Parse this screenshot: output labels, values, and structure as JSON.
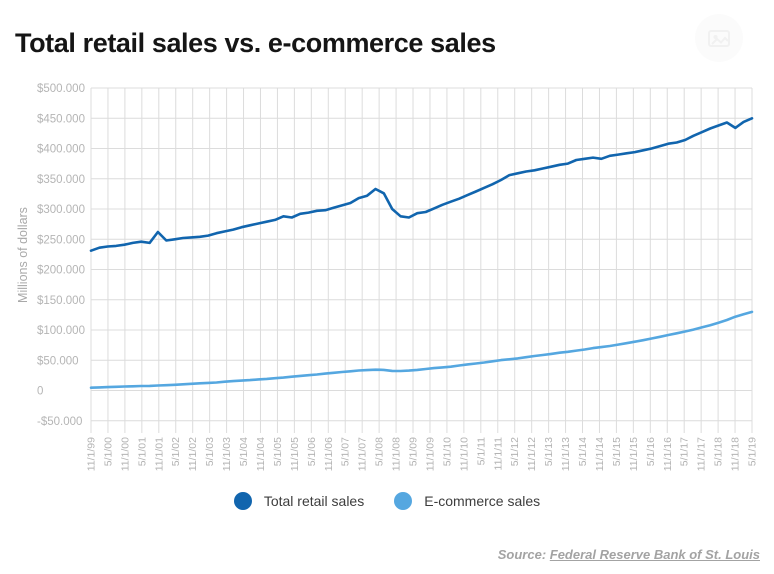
{
  "title": "Total retail sales vs. e-commerce sales",
  "toolbar": {
    "export_icon": "export-chart-icon"
  },
  "legend": [
    {
      "label": "Total retail sales",
      "color": "#1165ae"
    },
    {
      "label": "E-commerce sales",
      "color": "#55a7e0"
    }
  ],
  "source": {
    "prefix": "Source: ",
    "link_text": "Federal Reserve Bank of St. Louis"
  },
  "chart_data": {
    "type": "line",
    "title": "Total retail sales vs. e-commerce sales",
    "xlabel": "",
    "ylabel": "Millions of dollars",
    "ylim": [
      -50,
      500
    ],
    "y_unit_note": "axis shows thousands of millions, e.g. $500.000 = 500,000 million",
    "y_tick_values": [
      500,
      450,
      400,
      350,
      300,
      250,
      200,
      150,
      100,
      50,
      0,
      -50
    ],
    "y_tick_labels": [
      "$500.000",
      "$450.000",
      "$400.000",
      "$350.000",
      "$300.000",
      "$250.000",
      "$200.000",
      "$150.000",
      "$100.000",
      "$50.000",
      "0",
      "-$50.000"
    ],
    "grid": true,
    "legend_position": "bottom",
    "x_tick_labels": [
      "11/1/99",
      "5/1/00",
      "11/1/00",
      "5/1/01",
      "11/1/01",
      "5/1/02",
      "11/1/02",
      "5/1/03",
      "11/1/03",
      "5/1/04",
      "11/1/04",
      "5/1/05",
      "11/1/05",
      "5/1/06",
      "11/1/06",
      "5/1/07",
      "11/1/07",
      "5/1/08",
      "11/1/08",
      "5/1/09",
      "11/1/09",
      "5/1/10",
      "11/1/10",
      "5/1/11",
      "11/1/11",
      "5/1/12",
      "11/1/12",
      "5/1/13",
      "11/1/13",
      "5/1/14",
      "11/1/14",
      "5/1/15",
      "11/1/15",
      "5/1/16",
      "11/1/16",
      "5/1/17",
      "11/1/17",
      "5/1/18",
      "11/1/18",
      "5/1/19"
    ],
    "points_per_tick_interval": 2,
    "x_frequency": "quarterly from 11/1/99 to 5/1/19",
    "series": [
      {
        "name": "Total retail sales",
        "color": "#1165ae",
        "values": [
          231,
          236,
          238,
          239,
          241,
          244,
          246,
          244,
          262,
          248,
          250,
          252,
          253,
          254,
          256,
          260,
          263,
          266,
          270,
          273,
          276,
          279,
          282,
          288,
          286,
          292,
          294,
          297,
          298,
          302,
          306,
          310,
          318,
          322,
          333,
          326,
          300,
          288,
          286,
          293,
          295,
          301,
          307,
          312,
          317,
          323,
          329,
          335,
          341,
          348,
          356,
          359,
          362,
          364,
          367,
          370,
          373,
          375,
          381,
          383,
          385,
          383,
          388,
          390,
          392,
          394,
          397,
          400,
          404,
          408,
          410,
          414,
          421,
          427,
          433,
          438,
          443,
          434,
          444,
          450
        ]
      },
      {
        "name": "E-commerce sales",
        "color": "#55a7e0",
        "values": [
          4.6,
          5.2,
          5.6,
          6.1,
          6.6,
          7.0,
          7.4,
          7.6,
          8.2,
          8.8,
          9.5,
          10.2,
          11.1,
          11.9,
          12.5,
          13.3,
          14.6,
          15.5,
          16.4,
          17.2,
          18.3,
          19.2,
          20.3,
          21.4,
          22.8,
          24.2,
          25.3,
          26.5,
          27.9,
          29.2,
          30.5,
          31.7,
          33.1,
          33.8,
          34.4,
          34.0,
          32.4,
          32.3,
          32.9,
          34.0,
          35.6,
          37.0,
          38.2,
          39.3,
          41.3,
          43.1,
          44.7,
          46.3,
          48.2,
          50.3,
          51.6,
          53.0,
          55.1,
          57.0,
          58.7,
          60.5,
          62.5,
          64.0,
          66.0,
          67.8,
          70.0,
          71.7,
          73.6,
          75.9,
          78.2,
          80.6,
          83.2,
          86.0,
          88.7,
          91.7,
          94.5,
          97.5,
          100.7,
          104.3,
          108.0,
          112.0,
          116.5,
          122.0,
          126.0,
          130.0
        ]
      }
    ]
  }
}
